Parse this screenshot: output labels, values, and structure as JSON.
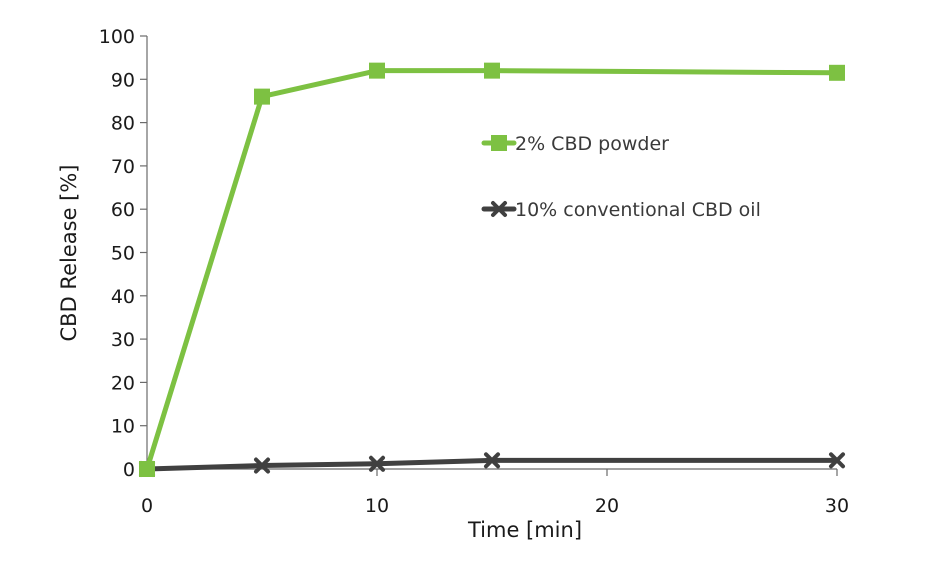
{
  "chart_data": {
    "type": "line",
    "title": "",
    "xlabel": "Time [min]",
    "ylabel": "CBD Release [%]",
    "xlim": [
      0,
      30
    ],
    "ylim": [
      0,
      100
    ],
    "x_ticks": [
      0,
      10,
      20,
      30
    ],
    "y_ticks": [
      0,
      10,
      20,
      30,
      40,
      50,
      60,
      70,
      80,
      90,
      100
    ],
    "grid": false,
    "legend_position": "right",
    "series": [
      {
        "name": "2% CBD powder",
        "color": "#7dc142",
        "marker": "square",
        "x": [
          0,
          5,
          10,
          15,
          30
        ],
        "y": [
          0,
          86,
          92,
          92,
          91.5
        ]
      },
      {
        "name": "10% conventional CBD oil",
        "color": "#404040",
        "marker": "x",
        "x": [
          0,
          5,
          10,
          15,
          30
        ],
        "y": [
          0,
          0.8,
          1.2,
          2,
          2
        ]
      }
    ]
  }
}
